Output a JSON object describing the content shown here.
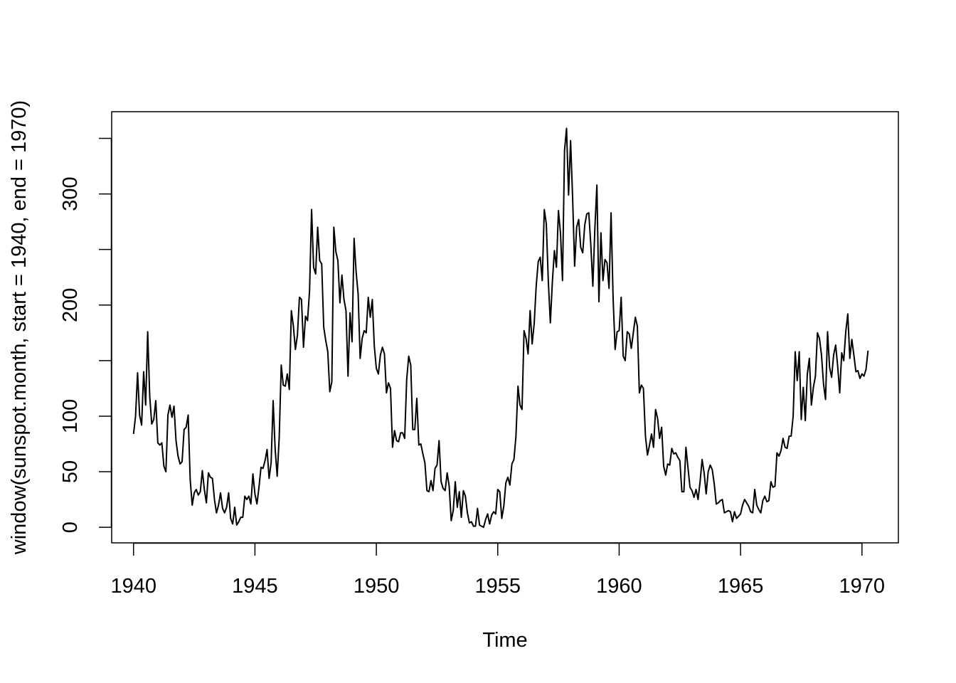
{
  "chart_data": {
    "type": "line",
    "xlabel": "Time",
    "ylabel": "window(sunspot.month, start = 1940, end = 1970)",
    "xlim": [
      1939.1,
      1971.5
    ],
    "ylim": [
      -14,
      374
    ],
    "x_ticks": [
      1940,
      1945,
      1950,
      1955,
      1960,
      1965,
      1970
    ],
    "y_ticks": [
      0,
      50,
      100,
      150,
      200,
      250,
      300,
      350
    ],
    "y_tick_labels_shown": [
      0,
      50,
      100,
      200,
      300
    ],
    "grid": false,
    "line_color": "#000000",
    "series": [
      {
        "start": 1940,
        "step": 0.0833333,
        "values": [
          84,
          100,
          139,
          101,
          92,
          140,
          110,
          176,
          118,
          93,
          97,
          114,
          76,
          74,
          76,
          55,
          50,
          101,
          110,
          99,
          109,
          78,
          64,
          57,
          59,
          88,
          90,
          101,
          43,
          20,
          31,
          34,
          29,
          32,
          51,
          34,
          22,
          49,
          45,
          44,
          25,
          13,
          20,
          31,
          17,
          13,
          18,
          31,
          8,
          3,
          18,
          2,
          5,
          9,
          9,
          28,
          25,
          28,
          21,
          48,
          30,
          21,
          36,
          54,
          53,
          60,
          70,
          44,
          58,
          114,
          70,
          46,
          81,
          146,
          128,
          127,
          138,
          124,
          195,
          181,
          160,
          173,
          207,
          205,
          162,
          190,
          186,
          213,
          286,
          234,
          228,
          270,
          240,
          237,
          180,
          168,
          158,
          122,
          131,
          270,
          248,
          240,
          202,
          227,
          205,
          195,
          136,
          193,
          167,
          260,
          230,
          210,
          152,
          170,
          177,
          175,
          207,
          189,
          205,
          163,
          143,
          138,
          155,
          162,
          156,
          121,
          130,
          125,
          72,
          87,
          78,
          77,
          85,
          85,
          80,
          133,
          154,
          146,
          88,
          88,
          116,
          74,
          75,
          66,
          58,
          33,
          32,
          42,
          33,
          53,
          56,
          78,
          41,
          35,
          33,
          49,
          37,
          6,
          15,
          41,
          18,
          32,
          9,
          33,
          28,
          13,
          4,
          5,
          1,
          1,
          17,
          2,
          1,
          0,
          7,
          12,
          3,
          11,
          14,
          12,
          34,
          32,
          8,
          19,
          40,
          45,
          38,
          57,
          61,
          82,
          127,
          110,
          106,
          177,
          170,
          156,
          195,
          165,
          183,
          217,
          239,
          243,
          222,
          286,
          273,
          221,
          184,
          221,
          249,
          234,
          285,
          265,
          222,
          339,
          359,
          299,
          348,
          297,
          235,
          270,
          277,
          252,
          247,
          272,
          282,
          283,
          254,
          217,
          269,
          308,
          203,
          265,
          222,
          241,
          238,
          215,
          283,
          207,
          160,
          176,
          177,
          207,
          154,
          150,
          176,
          174,
          161,
          175,
          189,
          181,
          121,
          128,
          125,
          82,
          65,
          74,
          84,
          72,
          106,
          98,
          80,
          90,
          55,
          47,
          57,
          56,
          71,
          66,
          67,
          63,
          60,
          32,
          32,
          72,
          54,
          36,
          33,
          27,
          34,
          25,
          41,
          61,
          49,
          30,
          50,
          56,
          52,
          39,
          21,
          22,
          24,
          25,
          13,
          14,
          15,
          14,
          5,
          14,
          8,
          10,
          12,
          20,
          25,
          22,
          19,
          14,
          13,
          34,
          20,
          16,
          13,
          24,
          28,
          23,
          24,
          41,
          36,
          37,
          67,
          64,
          69,
          80,
          72,
          71,
          82,
          82,
          100,
          158,
          132,
          158,
          97,
          126,
          96,
          138,
          152,
          110,
          126,
          136,
          175,
          170,
          155,
          129,
          115,
          176,
          144,
          135,
          155,
          164,
          145,
          121,
          157,
          150,
          176,
          192,
          152,
          169,
          155,
          140,
          141,
          134,
          138,
          136,
          142,
          159
        ]
      }
    ]
  }
}
